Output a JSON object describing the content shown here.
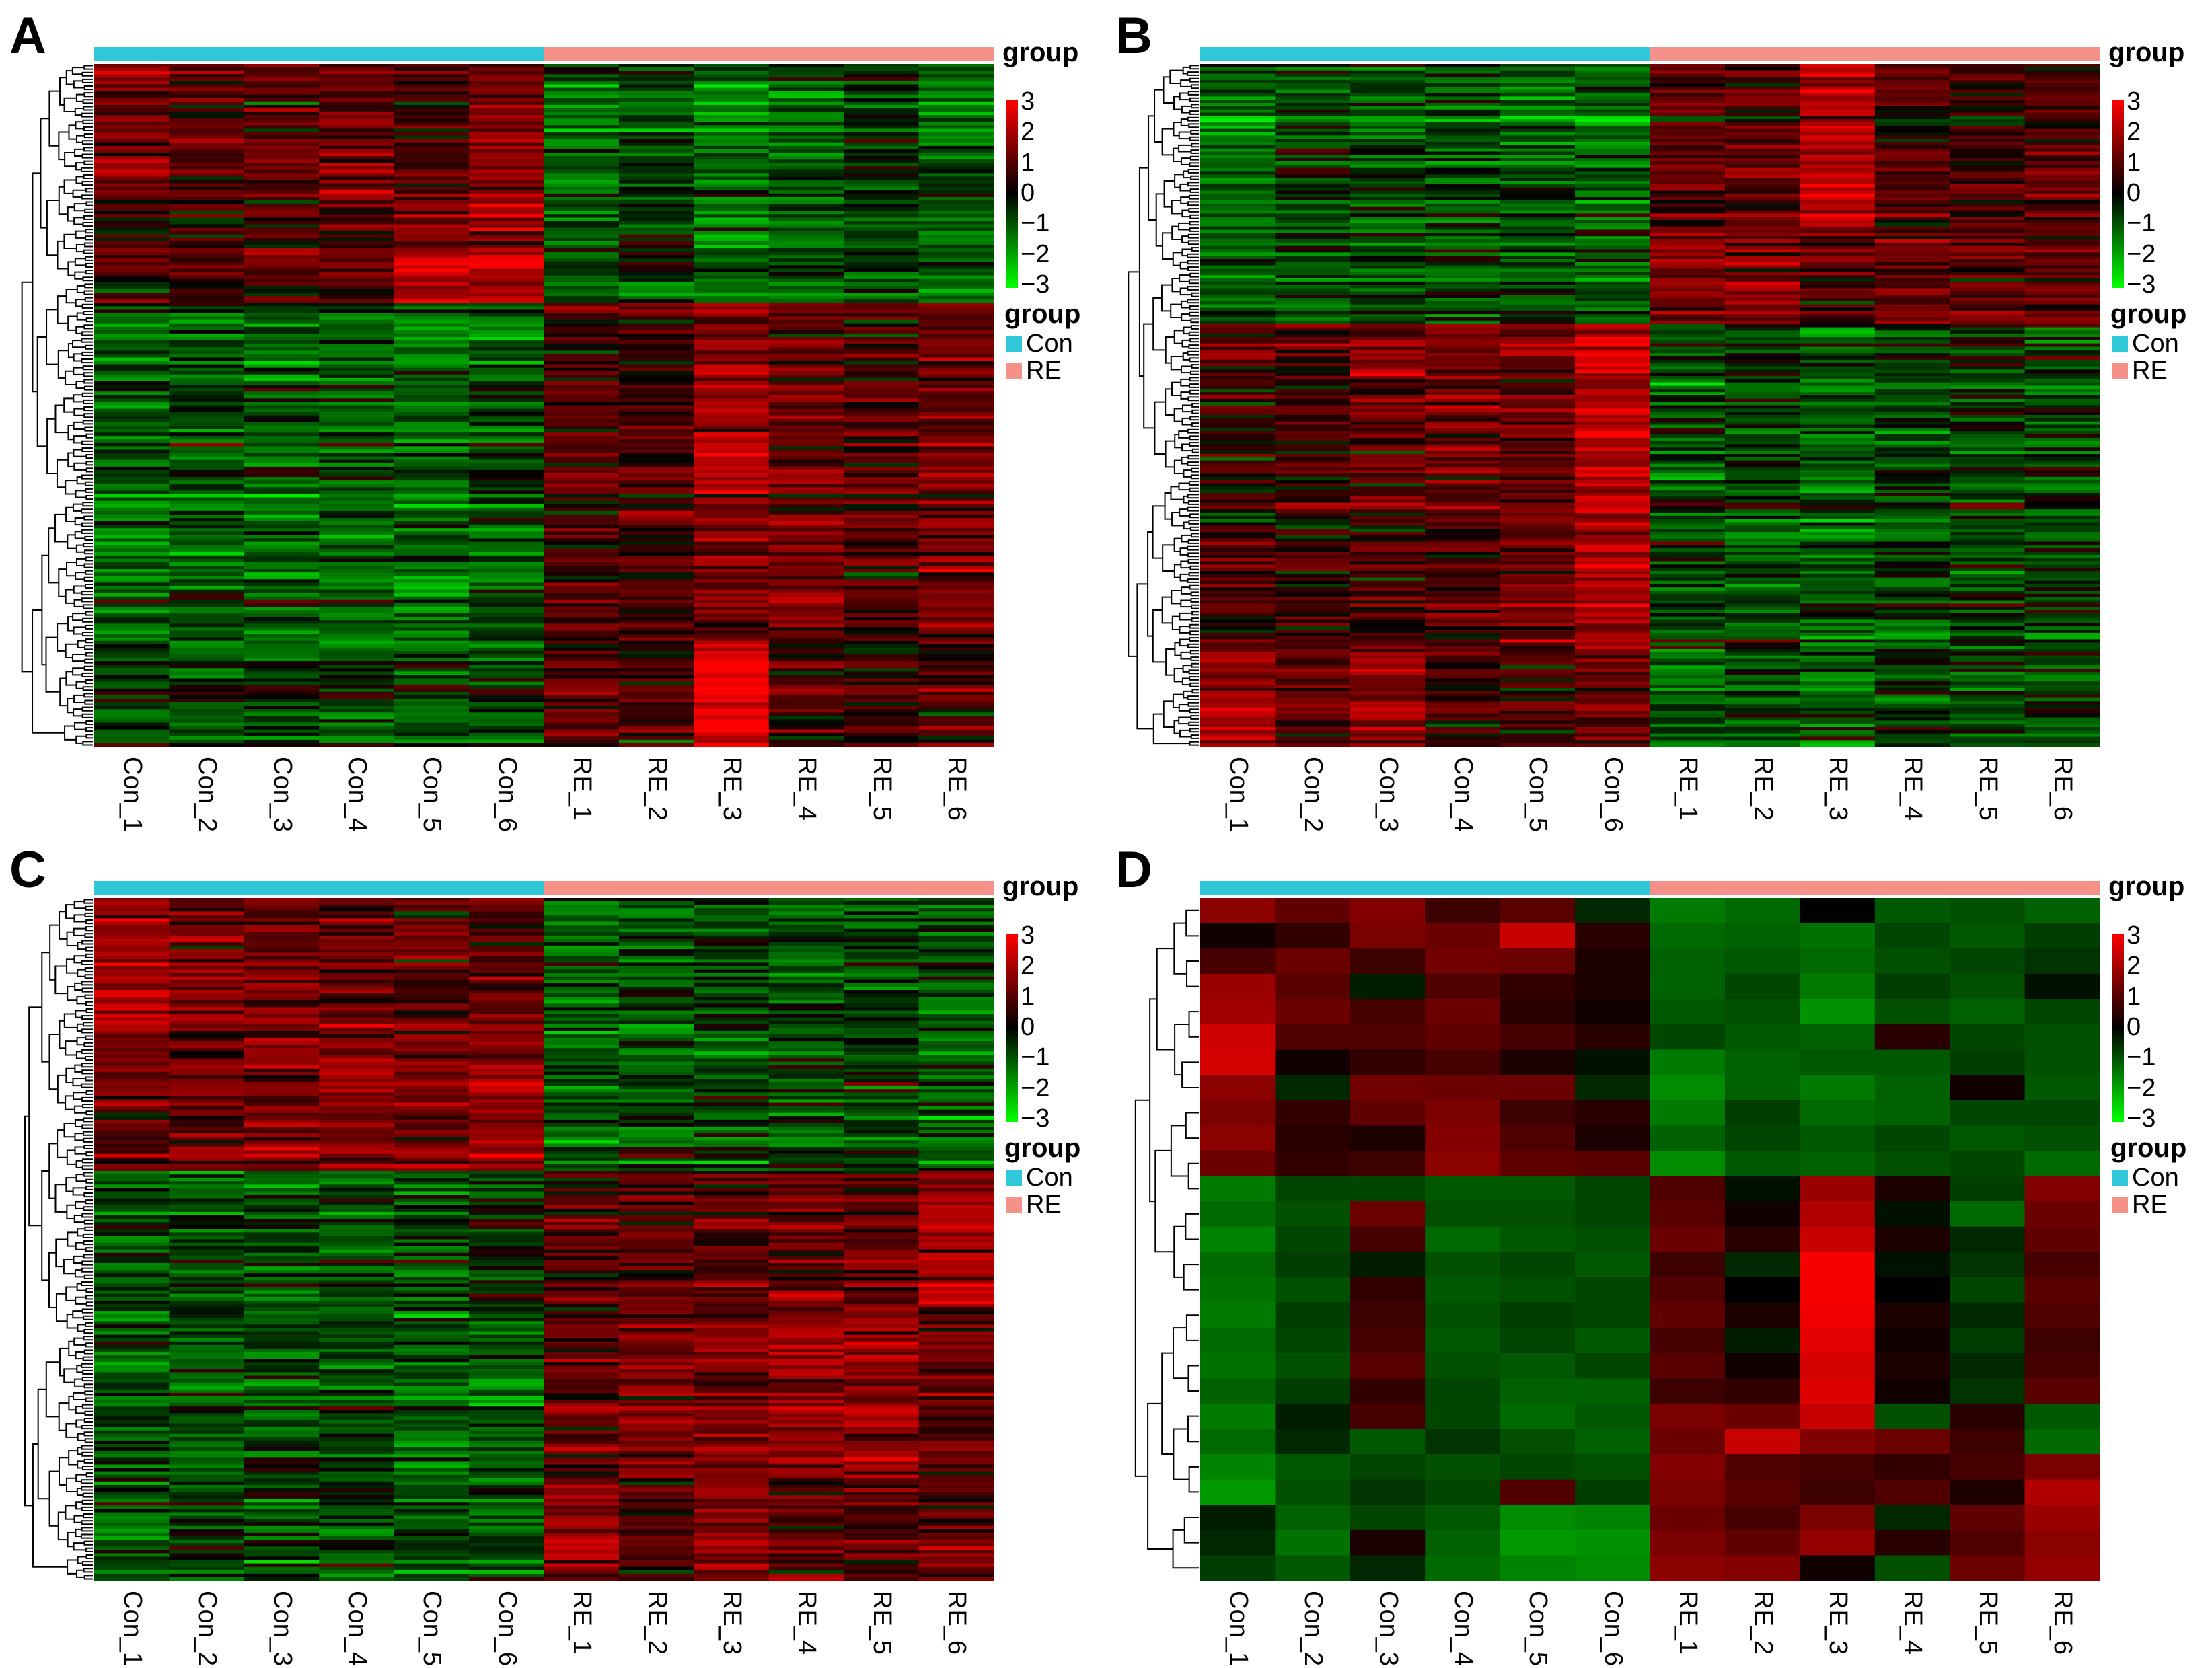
{
  "chart_data": [
    {
      "type": "heatmap",
      "panel_label": "A",
      "columns": [
        "Con_1",
        "Con_2",
        "Con_3",
        "Con_4",
        "Con_5",
        "Con_6",
        "RE_1",
        "RE_2",
        "RE_3",
        "RE_4",
        "RE_5",
        "RE_6"
      ],
      "column_groups": [
        "Con",
        "Con",
        "Con",
        "Con",
        "Con",
        "Con",
        "RE",
        "RE",
        "RE",
        "RE",
        "RE",
        "RE"
      ],
      "annotation_title": "group",
      "scale_ticks": [
        "3",
        "2",
        "1",
        "0",
        "−1",
        "−2",
        "−3"
      ],
      "scale_range": [
        -3,
        3
      ],
      "legend_title": "group",
      "legend_entries": [
        "Con",
        "RE"
      ],
      "row_clusters": [
        {
          "rows": 40,
          "means": [
            1.2,
            0.9,
            1.0,
            1.1,
            0.6,
            1.3,
            -0.8,
            -0.6,
            -1.1,
            -0.8,
            -0.5,
            -0.9
          ]
        },
        {
          "rows": 30,
          "means": [
            0.4,
            0.5,
            0.7,
            0.6,
            1.6,
            1.8,
            -0.7,
            -0.5,
            -1.0,
            -0.7,
            -0.6,
            -0.8
          ]
        },
        {
          "rows": 60,
          "means": [
            -1.0,
            -0.8,
            -0.9,
            -0.9,
            -1.1,
            -0.7,
            0.6,
            0.5,
            1.6,
            0.8,
            0.6,
            1.0
          ]
        },
        {
          "rows": 40,
          "means": [
            -0.9,
            -0.7,
            -0.8,
            -0.8,
            -0.9,
            -0.6,
            0.7,
            0.6,
            1.2,
            1.2,
            0.7,
            1.4
          ]
        },
        {
          "rows": 30,
          "means": [
            -0.6,
            -0.6,
            -0.6,
            -0.6,
            -0.6,
            -0.6,
            0.7,
            0.4,
            2.6,
            0.6,
            0.4,
            0.5
          ]
        }
      ]
    },
    {
      "type": "heatmap",
      "panel_label": "B",
      "columns": [
        "Con_1",
        "Con_2",
        "Con_3",
        "Con_4",
        "Con_5",
        "Con_6",
        "RE_1",
        "RE_2",
        "RE_3",
        "RE_4",
        "RE_5",
        "RE_6"
      ],
      "column_groups": [
        "Con",
        "Con",
        "Con",
        "Con",
        "Con",
        "Con",
        "RE",
        "RE",
        "RE",
        "RE",
        "RE",
        "RE"
      ],
      "annotation_title": "group",
      "scale_ticks": [
        "3",
        "2",
        "1",
        "0",
        "−1",
        "−2",
        "−3"
      ],
      "scale_range": [
        -3,
        3
      ],
      "legend_title": "group",
      "legend_entries": [
        "Con",
        "RE"
      ],
      "row_clusters": [
        {
          "rows": 50,
          "means": [
            -1.0,
            -0.6,
            -0.8,
            -0.7,
            -0.8,
            -0.9,
            0.7,
            0.8,
            2.0,
            0.6,
            0.5,
            0.8
          ]
        },
        {
          "rows": 30,
          "means": [
            -0.9,
            -0.7,
            -0.8,
            -0.8,
            -0.7,
            -0.8,
            1.0,
            1.3,
            0.7,
            0.9,
            1.0,
            0.6
          ]
        },
        {
          "rows": 60,
          "means": [
            0.3,
            0.5,
            0.9,
            1.0,
            0.9,
            1.9,
            -0.7,
            -0.6,
            -0.9,
            -0.7,
            -0.6,
            -0.6
          ]
        },
        {
          "rows": 40,
          "means": [
            0.5,
            0.4,
            0.6,
            0.6,
            1.0,
            1.8,
            -0.6,
            -0.6,
            -0.8,
            -0.6,
            -0.5,
            -0.5
          ]
        },
        {
          "rows": 30,
          "means": [
            1.4,
            0.7,
            1.3,
            0.5,
            0.4,
            0.8,
            -0.8,
            -0.7,
            -0.9,
            -0.5,
            -0.6,
            -0.6
          ]
        }
      ]
    },
    {
      "type": "heatmap",
      "panel_label": "C",
      "columns": [
        "Con_1",
        "Con_2",
        "Con_3",
        "Con_4",
        "Con_5",
        "Con_6",
        "RE_1",
        "RE_2",
        "RE_3",
        "RE_4",
        "RE_5",
        "RE_6"
      ],
      "column_groups": [
        "Con",
        "Con",
        "Con",
        "Con",
        "Con",
        "Con",
        "RE",
        "RE",
        "RE",
        "RE",
        "RE",
        "RE"
      ],
      "annotation_title": "group",
      "scale_ticks": [
        "3",
        "2",
        "1",
        "0",
        "−1",
        "−2",
        "−3"
      ],
      "scale_range": [
        -3,
        3
      ],
      "legend_title": "group",
      "legend_entries": [
        "Con",
        "RE"
      ],
      "row_clusters": [
        {
          "rows": 40,
          "means": [
            1.8,
            1.2,
            1.1,
            1.0,
            0.8,
            1.0,
            -0.9,
            -0.7,
            -0.6,
            -0.8,
            -0.7,
            -0.8
          ]
        },
        {
          "rows": 40,
          "means": [
            1.0,
            0.9,
            1.2,
            1.2,
            1.1,
            1.5,
            -0.8,
            -0.7,
            -0.6,
            -0.7,
            -0.6,
            -0.8
          ]
        },
        {
          "rows": 40,
          "means": [
            -0.8,
            -0.7,
            -0.8,
            -0.7,
            -0.8,
            -0.6,
            0.6,
            0.6,
            0.7,
            0.9,
            0.8,
            1.6
          ]
        },
        {
          "rows": 50,
          "means": [
            -0.8,
            -0.8,
            -0.7,
            -0.7,
            -0.9,
            -0.9,
            0.7,
            1.2,
            1.0,
            1.5,
            1.4,
            0.7
          ]
        },
        {
          "rows": 30,
          "means": [
            -0.7,
            -0.6,
            -0.7,
            -0.6,
            -0.6,
            -0.7,
            1.6,
            0.6,
            1.2,
            0.9,
            0.6,
            0.8
          ]
        }
      ]
    },
    {
      "type": "heatmap",
      "panel_label": "D",
      "columns": [
        "Con_1",
        "Con_2",
        "Con_3",
        "Con_4",
        "Con_5",
        "Con_6",
        "RE_1",
        "RE_2",
        "RE_3",
        "RE_4",
        "RE_5",
        "RE_6"
      ],
      "column_groups": [
        "Con",
        "Con",
        "Con",
        "Con",
        "Con",
        "Con",
        "RE",
        "RE",
        "RE",
        "RE",
        "RE",
        "RE"
      ],
      "annotation_title": "group",
      "scale_ticks": [
        "3",
        "2",
        "1",
        "0",
        "−1",
        "−2",
        "−3"
      ],
      "scale_range": [
        -3,
        3
      ],
      "legend_title": "group",
      "legend_entries": [
        "Con",
        "RE"
      ],
      "rows": [
        [
          1.4,
          0.9,
          1.3,
          0.5,
          0.8,
          -0.3,
          -1.2,
          -1.0,
          0.0,
          -0.8,
          -0.7,
          -0.9
        ],
        [
          0.1,
          0.4,
          1.2,
          1.0,
          2.2,
          0.3,
          -1.0,
          -0.9,
          -1.1,
          -0.6,
          -0.8,
          -0.5
        ],
        [
          0.6,
          1.0,
          0.5,
          1.1,
          1.0,
          0.2,
          -0.9,
          -0.8,
          -1.0,
          -0.7,
          -0.6,
          -0.4
        ],
        [
          1.6,
          0.8,
          -0.2,
          0.7,
          0.4,
          0.2,
          -0.9,
          -0.6,
          -1.2,
          -0.5,
          -0.7,
          -0.1
        ],
        [
          1.7,
          1.0,
          0.6,
          1.0,
          0.3,
          0.1,
          -0.8,
          -0.7,
          -1.5,
          -0.7,
          -0.9,
          -0.6
        ],
        [
          2.3,
          0.7,
          0.7,
          0.9,
          0.6,
          0.3,
          -0.6,
          -0.8,
          -0.9,
          0.3,
          -0.6,
          -0.7
        ],
        [
          2.4,
          0.1,
          0.4,
          0.6,
          0.2,
          -0.1,
          -1.2,
          -0.9,
          -0.8,
          -0.8,
          -0.5,
          -0.7
        ],
        [
          1.4,
          -0.3,
          1.1,
          1.0,
          1.0,
          -0.3,
          -1.4,
          -0.9,
          -1.2,
          -0.9,
          0.1,
          -0.8
        ],
        [
          1.2,
          0.4,
          0.9,
          1.2,
          0.5,
          0.3,
          -1.2,
          -0.5,
          -1.0,
          -0.9,
          -0.6,
          -0.6
        ],
        [
          1.4,
          0.3,
          0.2,
          1.3,
          0.7,
          0.2,
          -0.9,
          -0.6,
          -0.8,
          -0.6,
          -0.8,
          -0.7
        ],
        [
          1.0,
          0.4,
          0.5,
          1.4,
          0.9,
          0.8,
          -1.4,
          -0.8,
          -0.9,
          -0.7,
          -0.6,
          -1.0
        ],
        [
          -1.2,
          -0.6,
          -0.6,
          -0.8,
          -0.8,
          -0.6,
          0.7,
          -0.1,
          1.6,
          0.2,
          -0.5,
          1.3
        ],
        [
          -1.0,
          -0.7,
          1.0,
          -0.7,
          -0.7,
          -0.6,
          0.8,
          0.1,
          1.9,
          -0.1,
          -1.0,
          1.0
        ],
        [
          -1.3,
          -0.6,
          0.6,
          -1.0,
          -0.8,
          -0.7,
          1.0,
          0.3,
          2.2,
          0.2,
          -0.3,
          0.9
        ],
        [
          -1.0,
          -0.5,
          -0.2,
          -0.7,
          -0.6,
          -0.8,
          0.5,
          -0.3,
          2.9,
          -0.1,
          -0.4,
          0.6
        ],
        [
          -1.1,
          -0.7,
          0.4,
          -0.8,
          -0.7,
          -0.6,
          0.7,
          0.0,
          2.9,
          0.0,
          -0.6,
          0.8
        ],
        [
          -1.2,
          -0.5,
          0.5,
          -0.7,
          -0.5,
          -0.6,
          0.9,
          0.2,
          2.8,
          0.2,
          -0.3,
          0.7
        ],
        [
          -1.0,
          -0.6,
          0.6,
          -0.8,
          -0.6,
          -0.8,
          0.6,
          -0.2,
          2.6,
          0.1,
          -0.5,
          0.5
        ],
        [
          -1.1,
          -0.7,
          0.8,
          -0.7,
          -0.8,
          -0.6,
          0.8,
          0.1,
          2.4,
          0.2,
          -0.3,
          0.6
        ],
        [
          -0.9,
          -0.5,
          0.4,
          -0.6,
          -0.9,
          -0.9,
          0.5,
          0.4,
          2.5,
          0.1,
          -0.4,
          0.8
        ],
        [
          -1.2,
          -0.2,
          0.6,
          -0.6,
          -1.0,
          -0.8,
          1.2,
          1.0,
          2.2,
          -0.7,
          0.3,
          -0.8
        ],
        [
          -1.0,
          -0.3,
          -0.8,
          -0.4,
          -0.7,
          -0.9,
          1.0,
          2.2,
          1.3,
          1.0,
          0.5,
          -1.0
        ],
        [
          -1.3,
          -0.8,
          -0.6,
          -0.7,
          -0.6,
          -0.7,
          1.3,
          0.7,
          0.6,
          0.4,
          0.6,
          1.2
        ],
        [
          -1.6,
          -0.7,
          -0.4,
          -0.6,
          0.7,
          -0.5,
          1.2,
          0.8,
          0.5,
          0.7,
          0.2,
          1.9
        ],
        [
          -0.2,
          -0.9,
          -0.6,
          -0.8,
          -1.4,
          -1.3,
          1.0,
          0.6,
          1.2,
          -0.3,
          0.9,
          1.6
        ],
        [
          -0.3,
          -1.1,
          0.2,
          -0.9,
          -1.6,
          -1.5,
          1.2,
          0.9,
          1.5,
          0.3,
          0.7,
          1.4
        ],
        [
          -0.5,
          -0.8,
          -0.3,
          -1.0,
          -1.3,
          -1.4,
          1.4,
          1.3,
          0.1,
          -0.7,
          1.0,
          1.5
        ]
      ]
    }
  ]
}
